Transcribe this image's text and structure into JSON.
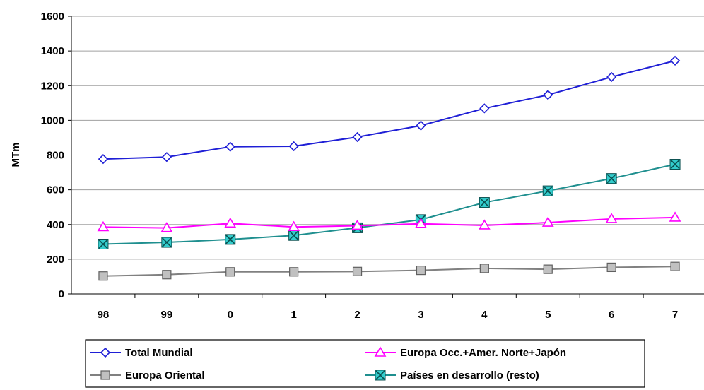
{
  "chart_data": {
    "type": "line",
    "categories": [
      "98",
      "99",
      "0",
      "1",
      "2",
      "3",
      "4",
      "5",
      "6",
      "7"
    ],
    "ylabel": "MTm",
    "xlabel": "",
    "ylim": [
      0,
      1600
    ],
    "yticks": [
      0,
      200,
      400,
      600,
      800,
      1000,
      1200,
      1400,
      1600
    ],
    "grid": "horizontal",
    "legend_position": "bottom",
    "series": [
      {
        "name": "Total Mundial",
        "color": "#1f1fd6",
        "marker": "diamond",
        "values": [
          777,
          789,
          848,
          851,
          904,
          970,
          1069,
          1147,
          1250,
          1344
        ]
      },
      {
        "name": "Europa Occ.+Amer. Norte+Japón",
        "color": "#ff00ff",
        "marker": "triangle",
        "values": [
          385,
          380,
          406,
          386,
          393,
          404,
          395,
          411,
          432,
          440
        ]
      },
      {
        "name": "Europa Oriental",
        "color": "#808080",
        "marker": "square",
        "values": [
          103,
          111,
          127,
          127,
          129,
          136,
          147,
          142,
          153,
          158
        ]
      },
      {
        "name": "Países en desarrollo (resto)",
        "color": "#1f8f8f",
        "marker_fill": "#33cccc",
        "marker": "x-square",
        "values": [
          287,
          297,
          314,
          337,
          381,
          428,
          527,
          594,
          665,
          747
        ]
      }
    ]
  }
}
